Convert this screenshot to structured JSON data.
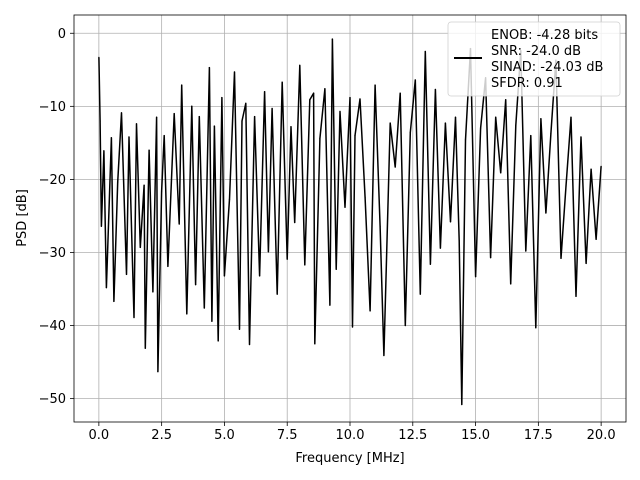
{
  "chart_data": {
    "type": "line",
    "title": "",
    "xlabel": "Frequency [MHz]",
    "ylabel": "PSD [dB]",
    "xlim": [
      -0.99,
      20.99
    ],
    "ylim": [
      -53.2,
      2.5
    ],
    "xticks": [
      0.0,
      2.5,
      5.0,
      7.5,
      10.0,
      12.5,
      15.0,
      17.5,
      20.0
    ],
    "xtick_labels": [
      "0.0",
      "2.5",
      "5.0",
      "7.5",
      "10.0",
      "12.5",
      "15.0",
      "17.5",
      "20.0"
    ],
    "yticks": [
      0,
      -10,
      -20,
      -30,
      -40,
      -50
    ],
    "ytick_labels": [
      "0",
      "−10",
      "−20",
      "−30",
      "−40",
      "−50"
    ],
    "grid": true,
    "legend_position": "upper-right",
    "series": [
      {
        "name": "ENOB: -4.28 bits\nSNR: -24.0 dB\nSINAD: -24.03 dB\nSFDR: 0.91",
        "color": "#000000",
        "x": [
          0.0,
          0.05,
          0.1,
          0.2,
          0.3,
          0.5,
          0.6,
          0.75,
          0.9,
          1.1,
          1.2,
          1.4,
          1.5,
          1.65,
          1.8,
          1.85,
          2.0,
          2.15,
          2.3,
          2.35,
          2.5,
          2.6,
          2.75,
          3.0,
          3.2,
          3.3,
          3.5,
          3.7,
          3.85,
          4.0,
          4.2,
          4.4,
          4.5,
          4.6,
          4.75,
          4.9,
          5.0,
          5.2,
          5.4,
          5.6,
          5.7,
          5.85,
          6.0,
          6.2,
          6.4,
          6.6,
          6.75,
          6.9,
          7.1,
          7.3,
          7.5,
          7.65,
          7.8,
          8.0,
          8.2,
          8.4,
          8.55,
          8.6,
          8.8,
          9.0,
          9.2,
          9.3,
          9.45,
          9.6,
          9.8,
          10.0,
          10.1,
          10.2,
          10.4,
          10.6,
          10.8,
          11.0,
          11.2,
          11.35,
          11.6,
          11.8,
          12.0,
          12.2,
          12.4,
          12.6,
          12.8,
          13.0,
          13.2,
          13.4,
          13.6,
          13.8,
          14.0,
          14.2,
          14.35,
          14.45,
          14.6,
          14.8,
          15.0,
          15.2,
          15.4,
          15.6,
          15.8,
          16.0,
          16.2,
          16.4,
          16.6,
          16.8,
          17.0,
          17.2,
          17.4,
          17.6,
          17.8,
          18.0,
          18.2,
          18.4,
          18.6,
          18.8,
          19.0,
          19.2,
          19.4,
          19.6,
          19.8,
          20.0
        ],
        "values": [
          -3.3,
          -12.0,
          -26.4,
          -16.1,
          -34.8,
          -14.3,
          -36.7,
          -20.4,
          -10.9,
          -33.0,
          -14.2,
          -38.9,
          -12.4,
          -29.3,
          -20.8,
          -43.1,
          -16.0,
          -35.4,
          -11.5,
          -46.3,
          -21.7,
          -14.0,
          -31.9,
          -11.0,
          -26.1,
          -7.1,
          -38.4,
          -10.0,
          -34.4,
          -11.4,
          -37.6,
          -4.7,
          -39.4,
          -12.7,
          -42.1,
          -8.8,
          -33.2,
          -22.7,
          -5.3,
          -40.5,
          -12.0,
          -9.6,
          -42.6,
          -11.4,
          -33.2,
          -8.0,
          -29.9,
          -10.3,
          -35.7,
          -6.7,
          -30.9,
          -12.8,
          -25.9,
          -4.4,
          -31.7,
          -9.1,
          -8.2,
          -42.5,
          -14.4,
          -7.6,
          -37.2,
          -0.8,
          -32.3,
          -10.7,
          -23.8,
          -8.8,
          -40.2,
          -14.0,
          -9.0,
          -22.5,
          -38.0,
          -7.1,
          -26.4,
          -44.1,
          -12.3,
          -18.3,
          -8.2,
          -40.0,
          -13.6,
          -6.4,
          -35.7,
          -2.5,
          -31.6,
          -7.7,
          -29.4,
          -12.3,
          -25.8,
          -11.5,
          -28.4,
          -50.8,
          -14.6,
          -2.1,
          -33.3,
          -13.0,
          -6.1,
          -30.7,
          -11.5,
          -19.1,
          -9.1,
          -34.3,
          -12.6,
          -2.4,
          -29.8,
          -14.0,
          -40.3,
          -11.7,
          -24.6,
          -13.7,
          -3.7,
          -30.8,
          -20.9,
          -11.5,
          -36.0,
          -14.2,
          -31.5,
          -18.6,
          -28.2,
          -18.2
        ]
      }
    ]
  }
}
